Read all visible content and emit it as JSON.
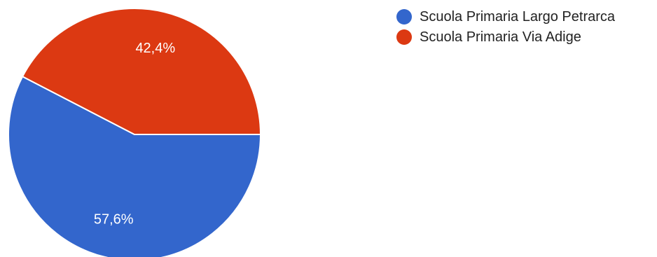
{
  "chart_data": {
    "type": "pie",
    "categories": [
      "Scuola Primaria Largo Petrarca",
      "Scuola Primaria Via Adige"
    ],
    "values": [
      57.6,
      42.4
    ],
    "value_labels": [
      "57,6%",
      "42,4%"
    ],
    "colors": [
      "#3366cc",
      "#dc3912"
    ],
    "legend": "right"
  }
}
